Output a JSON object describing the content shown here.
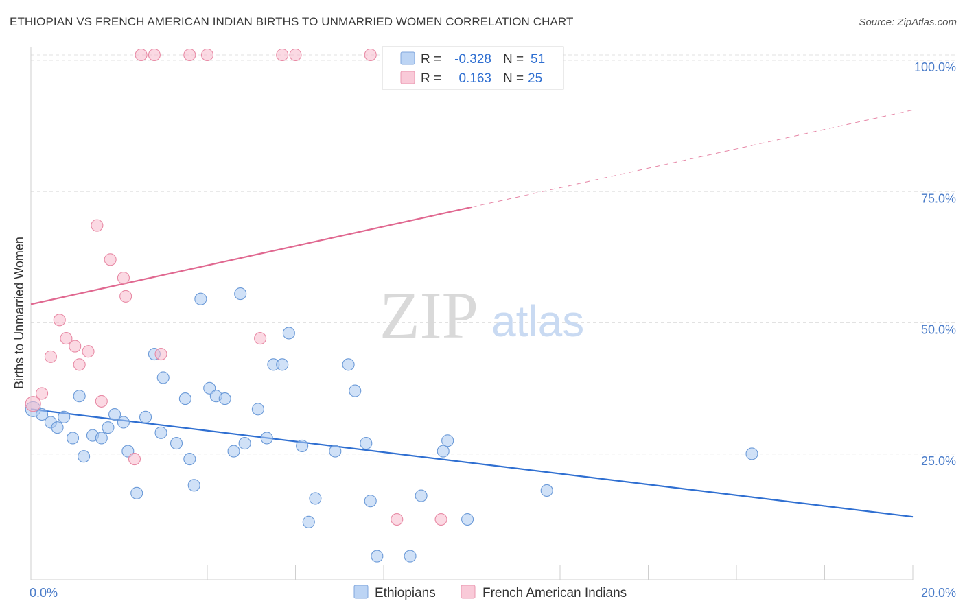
{
  "header": {
    "title": "ETHIOPIAN VS FRENCH AMERICAN INDIAN BIRTHS TO UNMARRIED WOMEN CORRELATION CHART",
    "source": "Source: ZipAtlas.com"
  },
  "watermark": {
    "zip": "ZIP",
    "atlas": "atlas"
  },
  "stats": [
    {
      "r_label": "R =",
      "r_value": "-0.328",
      "n_label": "N =",
      "n_value": "51",
      "color": "#a9c8f0"
    },
    {
      "r_label": "R =",
      "r_value": "0.163",
      "n_label": "N =",
      "n_value": "25",
      "color": "#f7b9cc"
    }
  ],
  "legend": [
    {
      "label": "Ethiopians",
      "color": "#a9c8f0"
    },
    {
      "label": "French American Indians",
      "color": "#f7b9cc"
    }
  ],
  "chart_data": {
    "type": "scatter",
    "title": "ETHIOPIAN VS FRENCH AMERICAN INDIAN BIRTHS TO UNMARRIED WOMEN CORRELATION CHART",
    "xlabel": "",
    "ylabel": "Births to Unmarried Women",
    "xlim": [
      0,
      20
    ],
    "ylim": [
      0,
      100
    ],
    "x_tick_labels": [
      "0.0%",
      "20.0%"
    ],
    "y_ticks": [
      25,
      50,
      75,
      100
    ],
    "y_tick_labels": [
      "25.0%",
      "50.0%",
      "75.0%",
      "100.0%"
    ],
    "grid": true,
    "legend_position": "bottom-center",
    "series": [
      {
        "name": "Ethiopians",
        "color": "#a9c8f0",
        "stroke": "#6b9ad8",
        "trend_color": "#2f6fd1",
        "trend": {
          "x": [
            0,
            20
          ],
          "y": [
            32.5,
            12.0
          ]
        },
        "points": [
          [
            0.05,
            32.5
          ],
          [
            0.25,
            31.5
          ],
          [
            0.45,
            30
          ],
          [
            0.6,
            29
          ],
          [
            0.75,
            31
          ],
          [
            0.95,
            27
          ],
          [
            1.1,
            35
          ],
          [
            1.2,
            23.5
          ],
          [
            1.4,
            27.5
          ],
          [
            1.6,
            27
          ],
          [
            1.75,
            29
          ],
          [
            1.9,
            31.5
          ],
          [
            2.1,
            30
          ],
          [
            2.2,
            24.5
          ],
          [
            2.4,
            16.5
          ],
          [
            2.6,
            31
          ],
          [
            2.8,
            43
          ],
          [
            2.95,
            28
          ],
          [
            3.0,
            38.5
          ],
          [
            3.3,
            26
          ],
          [
            3.5,
            34.5
          ],
          [
            3.6,
            23
          ],
          [
            3.7,
            18
          ],
          [
            3.85,
            53.5
          ],
          [
            4.05,
            36.5
          ],
          [
            4.2,
            35
          ],
          [
            4.4,
            34.5
          ],
          [
            4.6,
            24.5
          ],
          [
            4.75,
            54.5
          ],
          [
            4.85,
            26
          ],
          [
            5.15,
            32.5
          ],
          [
            5.35,
            27
          ],
          [
            5.5,
            41
          ],
          [
            5.7,
            41
          ],
          [
            5.85,
            47
          ],
          [
            6.15,
            25.5
          ],
          [
            6.3,
            11
          ],
          [
            6.45,
            15.5
          ],
          [
            6.9,
            24.5
          ],
          [
            7.2,
            41
          ],
          [
            7.35,
            36
          ],
          [
            7.6,
            26
          ],
          [
            7.7,
            15
          ],
          [
            7.85,
            4.5
          ],
          [
            8.6,
            4.5
          ],
          [
            8.85,
            16
          ],
          [
            9.35,
            24.5
          ],
          [
            9.45,
            26.5
          ],
          [
            9.9,
            11.5
          ],
          [
            11.7,
            17
          ],
          [
            16.35,
            24
          ]
        ]
      },
      {
        "name": "French American Indians",
        "color": "#f7b9cc",
        "stroke": "#e88aa5",
        "trend_color": "#e06890",
        "trend": {
          "x": [
            0,
            10
          ],
          "y": [
            52.5,
            71.0
          ]
        },
        "trend_extension": {
          "x": [
            10,
            20
          ],
          "y": [
            71.0,
            89.5
          ]
        },
        "points": [
          [
            0.05,
            33.5
          ],
          [
            0.25,
            35.5
          ],
          [
            0.45,
            42.5
          ],
          [
            0.65,
            49.5
          ],
          [
            0.8,
            46
          ],
          [
            1.0,
            44.5
          ],
          [
            1.1,
            41
          ],
          [
            1.3,
            43.5
          ],
          [
            1.5,
            67.5
          ],
          [
            1.6,
            34
          ],
          [
            1.8,
            61
          ],
          [
            2.1,
            57.5
          ],
          [
            2.15,
            54
          ],
          [
            2.35,
            23
          ],
          [
            2.5,
            100
          ],
          [
            2.8,
            100
          ],
          [
            2.95,
            43
          ],
          [
            3.6,
            100
          ],
          [
            4.0,
            100
          ],
          [
            5.2,
            46
          ],
          [
            5.7,
            100
          ],
          [
            6.0,
            100
          ],
          [
            7.7,
            100
          ],
          [
            8.3,
            11.5
          ],
          [
            9.3,
            11.5
          ]
        ]
      }
    ]
  }
}
